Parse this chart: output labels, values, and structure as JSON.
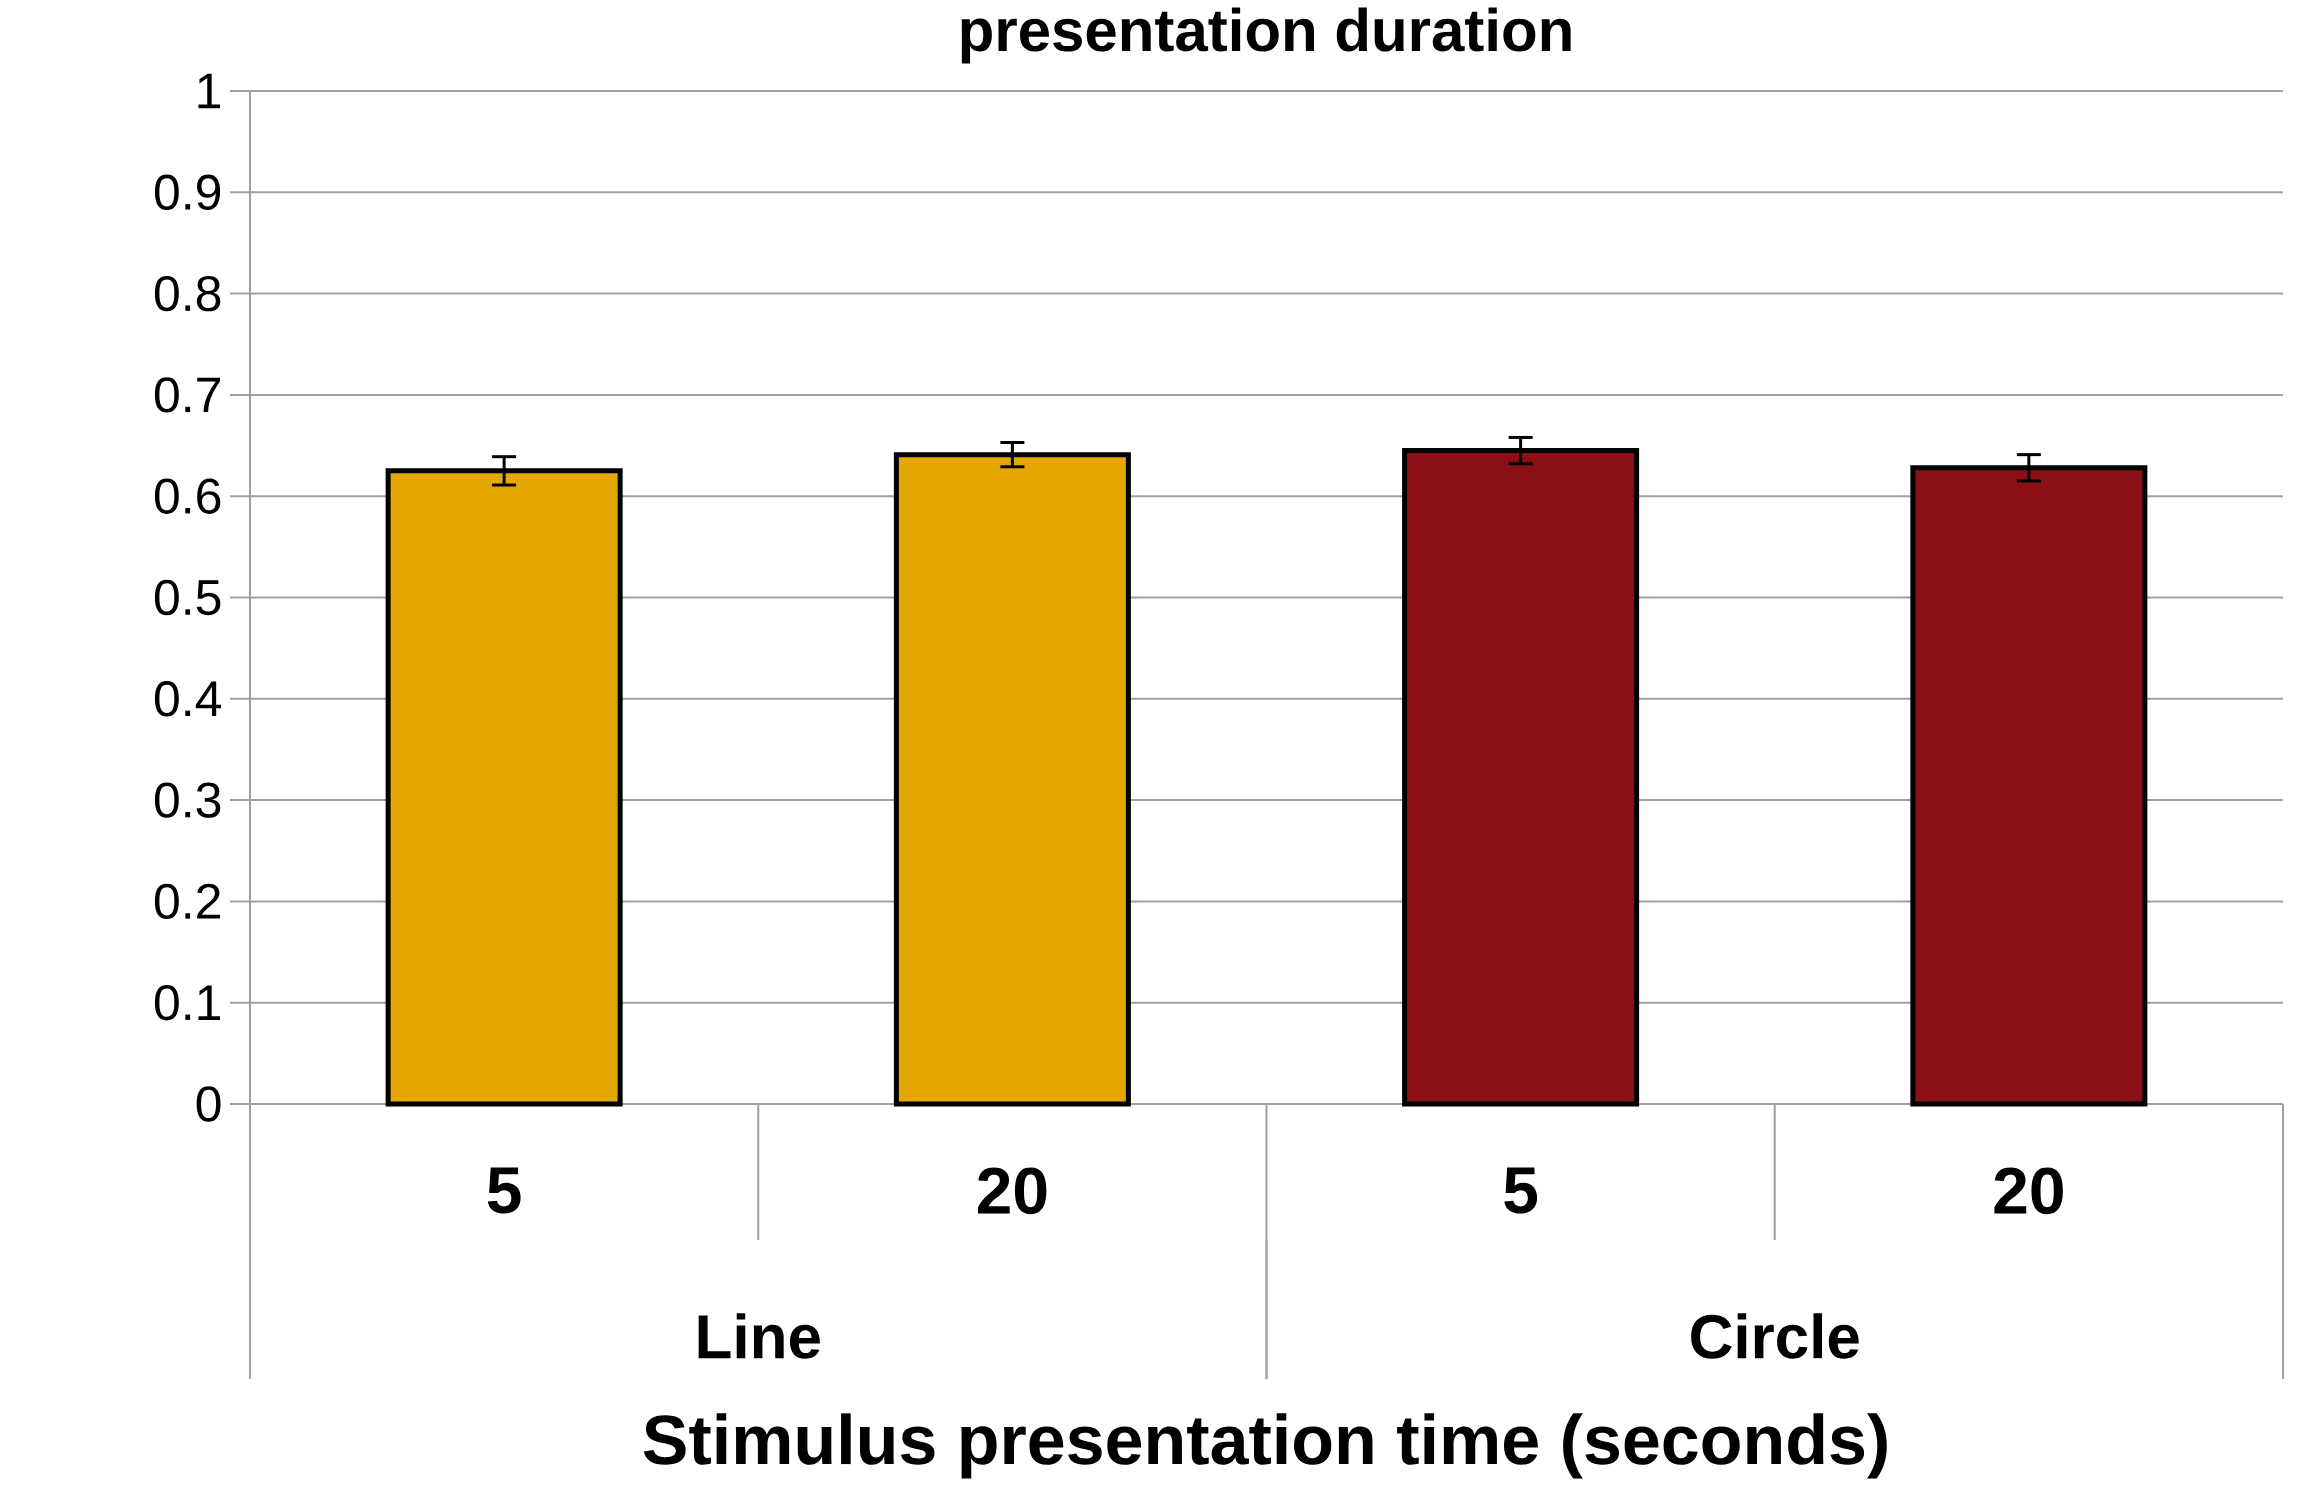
{
  "chart_data": {
    "type": "bar",
    "title": "presentation duration",
    "xlabel": "Stimulus presentation time (seconds)",
    "categories": [
      "5",
      "20",
      "5",
      "20"
    ],
    "values": [
      0.625,
      0.641,
      0.645,
      0.628
    ],
    "errors": [
      0.014,
      0.012,
      0.013,
      0.013
    ],
    "colors": [
      "#e5a800",
      "#e5a800",
      "#8a1015",
      "#8a1015"
    ],
    "annotations": [
      "Line",
      "Circle"
    ],
    "ylim": [
      0,
      1
    ],
    "yticks": [
      0,
      0.1,
      0.2,
      0.3,
      0.4,
      0.5,
      0.6,
      0.7,
      0.8,
      0.9,
      1
    ],
    "grid": "y"
  }
}
